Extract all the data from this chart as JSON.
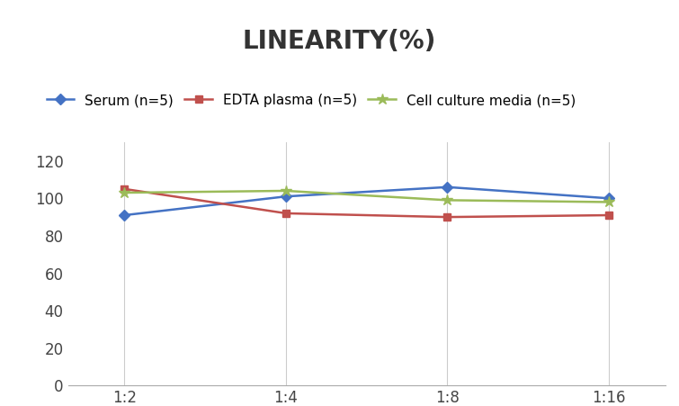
{
  "title": "LINEARITY(%)",
  "x_labels": [
    "1:2",
    "1:4",
    "1:8",
    "1:16"
  ],
  "x_positions": [
    0,
    1,
    2,
    3
  ],
  "series": [
    {
      "label": "Serum (n=5)",
      "color": "#4472C4",
      "marker": "D",
      "marker_size": 6,
      "values": [
        91,
        101,
        106,
        100
      ]
    },
    {
      "label": "EDTA plasma (n=5)",
      "color": "#C0504D",
      "marker": "s",
      "marker_size": 6,
      "values": [
        105,
        92,
        90,
        91
      ]
    },
    {
      "label": "Cell culture media (n=5)",
      "color": "#9BBB59",
      "marker": "*",
      "marker_size": 9,
      "values": [
        103,
        104,
        99,
        98
      ]
    }
  ],
  "ylim": [
    0,
    130
  ],
  "yticks": [
    0,
    20,
    40,
    60,
    80,
    100,
    120
  ],
  "background_color": "#ffffff",
  "title_fontsize": 20,
  "legend_fontsize": 11,
  "tick_fontsize": 12
}
